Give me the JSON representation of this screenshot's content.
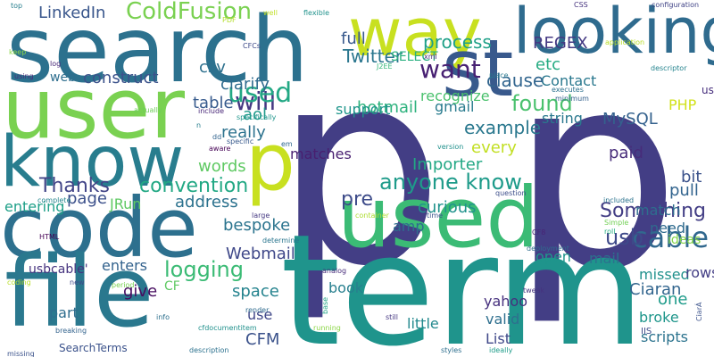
{
  "words": [
    {
      "text": "p",
      "color": "#433e85"
    },
    {
      "text": "p",
      "color": "#433e85"
    },
    {
      "text": "term",
      "color": "#1f948c"
    },
    {
      "text": "search",
      "color": "#2c718e"
    },
    {
      "text": "code",
      "color": "#2d708e"
    },
    {
      "text": "file",
      "color": "#2a788e"
    },
    {
      "text": "used",
      "color": "#3bbb75"
    },
    {
      "text": "know",
      "color": "#287d8e"
    },
    {
      "text": "user",
      "color": "#7ad151"
    },
    {
      "text": "looking",
      "color": "#2f6b8e"
    },
    {
      "text": "way",
      "color": "#c8e020"
    },
    {
      "text": "st",
      "color": "#38598c"
    },
    {
      "text": "p",
      "color": "#c8e020"
    },
    {
      "text": "ColdFusion",
      "color": "#7ad151"
    },
    {
      "text": "want",
      "color": "#482173"
    },
    {
      "text": "anyone know",
      "color": "#1e9b8a"
    },
    {
      "text": "example",
      "color": "#2a788e"
    },
    {
      "text": "found",
      "color": "#4ac16d"
    },
    {
      "text": "will",
      "color": "#453882"
    },
    {
      "text": "used",
      "color": "#22a884"
    },
    {
      "text": "cable",
      "color": "#31688e"
    },
    {
      "text": "usb",
      "color": "#3e4989"
    },
    {
      "text": "Something",
      "color": "#433e85"
    },
    {
      "text": "logging",
      "color": "#3bbb75"
    },
    {
      "text": "convention",
      "color": "#22a884"
    },
    {
      "text": "Thanks",
      "color": "#414487"
    },
    {
      "text": "LinkedIn",
      "color": "#39568c"
    },
    {
      "text": "process",
      "color": "#1fa088"
    },
    {
      "text": "full",
      "color": "#38598c"
    },
    {
      "text": "Twitter",
      "color": "#2a768e"
    },
    {
      "text": "REGEX",
      "color": "#443983"
    },
    {
      "text": "Contact",
      "color": "#2a788e"
    },
    {
      "text": "clause",
      "color": "#32658e"
    },
    {
      "text": "etc",
      "color": "#25ab82"
    },
    {
      "text": "csv",
      "color": "#2d708e"
    },
    {
      "text": "construct",
      "color": "#3b528b"
    },
    {
      "text": "clarify",
      "color": "#2f6b8e"
    },
    {
      "text": "table",
      "color": "#375b8d"
    },
    {
      "text": "really",
      "color": "#2c728e"
    },
    {
      "text": "aol",
      "color": "#1f9a8a"
    },
    {
      "text": "PHP",
      "color": "#d2e21b"
    },
    {
      "text": "MySQL",
      "color": "#34618d"
    },
    {
      "text": "every",
      "color": "#c2df23"
    },
    {
      "text": "paid",
      "color": "#472c7a"
    },
    {
      "text": "bit",
      "color": "#3b528b"
    },
    {
      "text": "pull",
      "color": "#32648e"
    },
    {
      "text": "match",
      "color": "#2e6e8e"
    },
    {
      "text": "pre",
      "color": "#3e4c8a"
    },
    {
      "text": "curious",
      "color": "#20928c"
    },
    {
      "text": "words",
      "color": "#5ec962"
    },
    {
      "text": "address",
      "color": "#2c728e"
    },
    {
      "text": "Importer",
      "color": "#22a884"
    },
    {
      "text": "gmail",
      "color": "#297b8e"
    },
    {
      "text": "hotmail",
      "color": "#2db27d"
    },
    {
      "text": "support",
      "color": "#1f968b"
    },
    {
      "text": "matches",
      "color": "#481f70"
    },
    {
      "text": "recognize",
      "color": "#4ac16d"
    },
    {
      "text": "string",
      "color": "#2a788e"
    },
    {
      "text": "amp",
      "color": "#2f6c8e"
    },
    {
      "text": "bespoke",
      "color": "#2b748e"
    },
    {
      "text": "Webmail",
      "color": "#3f4889"
    },
    {
      "text": "enters",
      "color": "#33628d"
    },
    {
      "text": "page",
      "color": "#3c508b"
    },
    {
      "text": "JRun",
      "color": "#5ec962"
    },
    {
      "text": "entering",
      "color": "#1fa088"
    },
    {
      "text": "usbcable'",
      "color": "#46337f"
    },
    {
      "text": "CF",
      "color": "#5ec962"
    },
    {
      "text": "space",
      "color": "#25838e"
    },
    {
      "text": "give",
      "color": "#470d60"
    },
    {
      "text": "part",
      "color": "#2e6d8e"
    },
    {
      "text": "use",
      "color": "#3f4788"
    },
    {
      "text": "CFM",
      "color": "#3b528b"
    },
    {
      "text": "book",
      "color": "#277f8e"
    },
    {
      "text": "valid",
      "color": "#2e6f8e"
    },
    {
      "text": "little",
      "color": "#23898e"
    },
    {
      "text": "List",
      "color": "#3f4889"
    },
    {
      "text": "yahoo",
      "color": "#46307e"
    },
    {
      "text": "open",
      "color": "#1f958b"
    },
    {
      "text": "mail",
      "color": "#2c718e"
    },
    {
      "text": "need",
      "color": "#2f6b8e"
    },
    {
      "text": "ideas",
      "color": "#84d44b"
    },
    {
      "text": "missed",
      "color": "#21918c"
    },
    {
      "text": "one",
      "color": "#1e9b8a"
    },
    {
      "text": "Ciaran",
      "color": "#32658e"
    },
    {
      "text": "broke",
      "color": "#1f968b"
    },
    {
      "text": "scripts",
      "color": "#2c738e"
    },
    {
      "text": "usbcable",
      "color": "#472f7d"
    },
    {
      "text": "rows",
      "color": "#433e85"
    },
    {
      "text": "SELECT",
      "color": "#29af7f"
    },
    {
      "text": "SearchTerms",
      "color": "#3b528b"
    },
    {
      "text": "web",
      "color": "#2e6e8e"
    },
    {
      "text": "flexible",
      "color": "#20928c"
    },
    {
      "text": "top",
      "color": "#277f8e"
    },
    {
      "text": "CSS",
      "color": "#46327e"
    },
    {
      "text": "configuration",
      "color": "#414487"
    },
    {
      "text": "well",
      "color": "#c0df25"
    },
    {
      "text": "PDF",
      "color": "#b5de2b"
    },
    {
      "text": "CFCs",
      "color": "#3e4a89"
    },
    {
      "text": "application",
      "color": "#b8de29"
    },
    {
      "text": "descriptor",
      "color": "#25848e"
    },
    {
      "text": "keep",
      "color": "#8bd646"
    },
    {
      "text": "xml",
      "color": "#46307e"
    },
    {
      "text": "log",
      "color": "#482878"
    },
    {
      "text": "using",
      "color": "#472d7b"
    },
    {
      "text": "J2EE",
      "color": "#35b779"
    },
    {
      "text": "minimum",
      "color": "#34618d"
    },
    {
      "text": "executes",
      "color": "#2c718e"
    },
    {
      "text": "place",
      "color": "#2a788e"
    },
    {
      "text": "actually",
      "color": "#6ece58"
    },
    {
      "text": "include",
      "color": "#482677"
    },
    {
      "text": "specifically",
      "color": "#1f968b"
    },
    {
      "text": "n",
      "color": "#277f8e"
    },
    {
      "text": "dd",
      "color": "#32648e"
    },
    {
      "text": "specific",
      "color": "#38598c"
    },
    {
      "text": "aware",
      "color": "#440154"
    },
    {
      "text": "em",
      "color": "#30698e"
    },
    {
      "text": "version",
      "color": "#21918c"
    },
    {
      "text": "question",
      "color": "#3d4e8a"
    },
    {
      "text": "included",
      "color": "#2c738e"
    },
    {
      "text": "complete",
      "color": "#25858e"
    },
    {
      "text": "large",
      "color": "#453882"
    },
    {
      "text": "time",
      "color": "#3b528b"
    },
    {
      "text": "Simple",
      "color": "#73d056"
    },
    {
      "text": "roll",
      "color": "#26ad81"
    },
    {
      "text": "container",
      "color": "#addc30"
    },
    {
      "text": "CF8",
      "color": "#482475"
    },
    {
      "text": "HTML",
      "color": "#440154"
    },
    {
      "text": "determine",
      "color": "#2a768e"
    },
    {
      "text": "deployment",
      "color": "#2f6c8e"
    },
    {
      "text": "analog",
      "color": "#472d7b"
    },
    {
      "text": "period",
      "color": "#7ad151"
    },
    {
      "text": "new",
      "color": "#3e4989"
    },
    {
      "text": "coding",
      "color": "#b8de29"
    },
    {
      "text": "tweak",
      "color": "#46337f"
    },
    {
      "text": "base",
      "color": "#20a386"
    },
    {
      "text": "render",
      "color": "#2f6b8e"
    },
    {
      "text": "info",
      "color": "#2d708e"
    },
    {
      "text": "still",
      "color": "#453781"
    },
    {
      "text": "running",
      "color": "#8bd646"
    },
    {
      "text": "breaking",
      "color": "#33638d"
    },
    {
      "text": "cfdocumentitem",
      "color": "#21918c"
    },
    {
      "text": "missing",
      "color": "#3b528b"
    },
    {
      "text": "description",
      "color": "#2c718e"
    },
    {
      "text": "styles",
      "color": "#2e6f8e"
    },
    {
      "text": "ideally",
      "color": "#1e9c89"
    },
    {
      "text": "IIS",
      "color": "#3e4a89"
    },
    {
      "text": "CiarÁ",
      "color": "#3b528b"
    }
  ]
}
